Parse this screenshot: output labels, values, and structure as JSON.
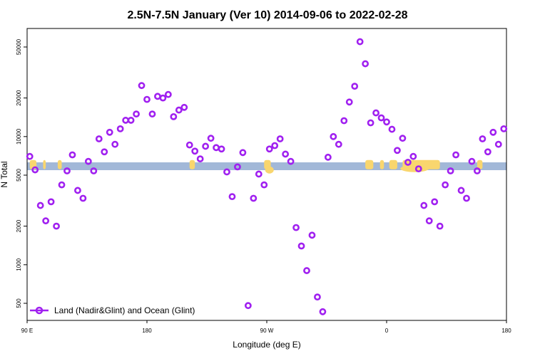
{
  "chart_data": {
    "type": "scatter",
    "title": "2.5N-7.5N January (Ver 10)   2014-09-06 to 2022-02-28",
    "xlabel": "Longitude (deg E)",
    "ylabel": "N Total",
    "x_scale": "longitude, 90 E at left edge wrapping through 180, 90 W, 0 to 180 at right edge",
    "y_scale": "log",
    "xlim": [
      90,
      450
    ],
    "ylim": [
      400,
      65000
    ],
    "x_ticks": [
      {
        "value": 90,
        "label": "90 E"
      },
      {
        "value": 180,
        "label": "180"
      },
      {
        "value": 270,
        "label": "90 W"
      },
      {
        "value": 360,
        "label": "0"
      },
      {
        "value": 450,
        "label": "180"
      }
    ],
    "y_ticks": [
      {
        "value": 500,
        "label": "500"
      },
      {
        "value": 1000,
        "label": "1000"
      },
      {
        "value": 2000,
        "label": "2000"
      },
      {
        "value": 5000,
        "label": "5000"
      },
      {
        "value": 10000,
        "label": "10000"
      },
      {
        "value": 20000,
        "label": "20000"
      },
      {
        "value": 50000,
        "label": "50000"
      }
    ],
    "grid": false,
    "legend": {
      "position": "bottom-left",
      "entries": [
        "Land (Nadir&Glint) and Ocean (Glint)"
      ]
    },
    "series": [
      {
        "name": "Land (Nadir&Glint) and Ocean (Glint)",
        "color": "#a020f0",
        "marker": "open-circle",
        "x": [
          92,
          96,
          100,
          104,
          108,
          112,
          116,
          120,
          124,
          128,
          132,
          136,
          140,
          144,
          148,
          152,
          156,
          160,
          164,
          168,
          172,
          176,
          180,
          184,
          188,
          192,
          196,
          200,
          204,
          208,
          212,
          216,
          220,
          224,
          228,
          232,
          236,
          240,
          244,
          248,
          252,
          256,
          260,
          264,
          268,
          272,
          276,
          280,
          284,
          288,
          292,
          296,
          300,
          304,
          308,
          312,
          316,
          320,
          324,
          328,
          332,
          336,
          340,
          344,
          348,
          352,
          356,
          360,
          364,
          368,
          372,
          376,
          380,
          384,
          388,
          392,
          396,
          400,
          404,
          408,
          412,
          416,
          420,
          424,
          428,
          432,
          436,
          440,
          444,
          448
        ],
        "y": [
          7000,
          5500,
          2900,
          2200,
          3100,
          2000,
          4200,
          5400,
          7200,
          3800,
          3300,
          6400,
          5400,
          9600,
          7600,
          10800,
          8700,
          11500,
          13400,
          13400,
          15000,
          25000,
          19500,
          15000,
          20600,
          20000,
          21300,
          14300,
          16100,
          16900,
          8600,
          7700,
          6700,
          8400,
          9700,
          8200,
          8000,
          5300,
          3400,
          5800,
          7500,
          480,
          3300,
          5100,
          4200,
          8000,
          8500,
          9600,
          7300,
          6400,
          1950,
          1400,
          900,
          1700,
          560,
          430,
          6900,
          10000,
          8700,
          13300,
          18600,
          24700,
          55000,
          37000,
          12800,
          15300,
          14000,
          13000,
          11400,
          7800,
          9700,
          6300,
          7000,
          5600,
          2900,
          2200,
          3100,
          2000,
          4200,
          5400,
          7200,
          3800,
          3300,
          6400,
          5400,
          9600,
          7600,
          10800,
          8700,
          11500
        ]
      }
    ],
    "background_band": {
      "y_range": [
        5700,
        6400
      ],
      "ocean_color": "#a2b8d8",
      "land_color": "#f9d66e"
    }
  }
}
